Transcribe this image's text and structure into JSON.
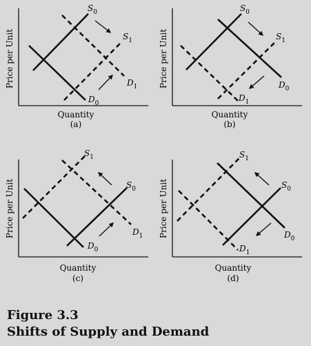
{
  "figure": {
    "number": "Figure 3.3",
    "title": "Shifts of Supply and Demand"
  },
  "axis": {
    "y_label": "Price per Unit",
    "x_label": "Quantity"
  },
  "panels": [
    {
      "id": "a",
      "tag": "(a)",
      "curves": {
        "S": "S0",
        "S_shift": "S1",
        "D": "D0",
        "D_shift": "D1"
      },
      "shifted": [
        "S",
        "D"
      ],
      "arrows": [
        "supply-right",
        "demand-right"
      ]
    },
    {
      "id": "b",
      "tag": "(b)",
      "curves": {
        "S": "S0",
        "S_shift": "S1",
        "D": "D0",
        "D_shift": "D1"
      },
      "shifted": [
        "S",
        "D"
      ],
      "arrows": [
        "supply-right",
        "demand-left"
      ]
    },
    {
      "id": "c",
      "tag": "(c)",
      "curves": {
        "S": "S0",
        "S_shift": "S1",
        "D": "D0",
        "D_shift": "D1"
      },
      "shifted": [
        "S",
        "D"
      ],
      "arrows": [
        "supply-left",
        "demand-right"
      ]
    },
    {
      "id": "d",
      "tag": "(d)",
      "curves": {
        "S": "S0",
        "S_shift": "S1",
        "D": "D0",
        "D_shift": "D1"
      },
      "shifted": [
        "S",
        "D"
      ],
      "arrows": [
        "supply-left",
        "demand-left"
      ]
    }
  ],
  "colors": {
    "background": "#d9d9d9",
    "ink": "#111111"
  }
}
